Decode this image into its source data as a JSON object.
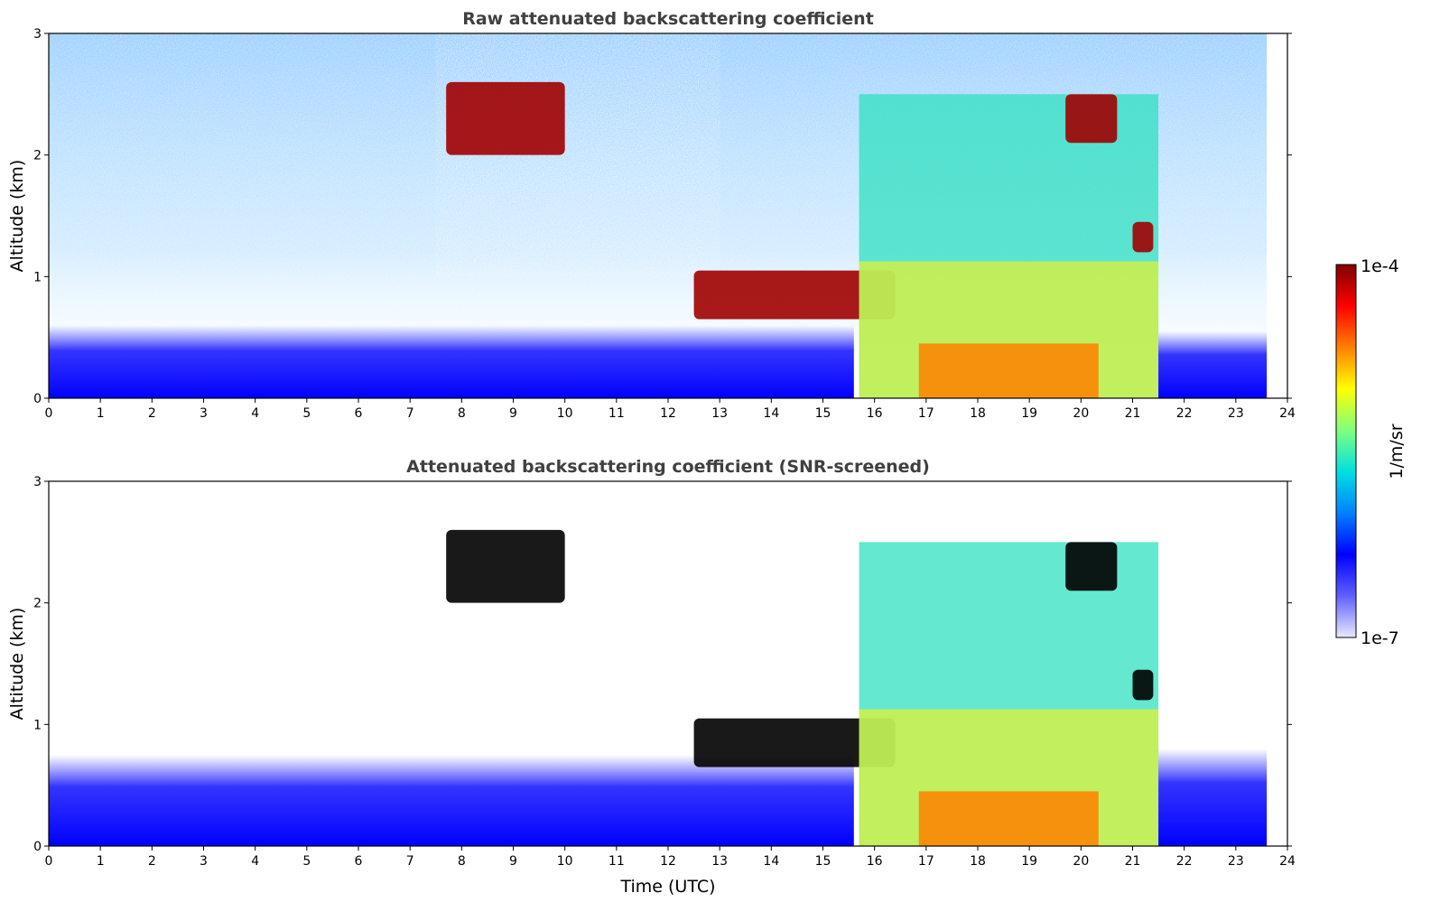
{
  "chart_data": [
    {
      "type": "heatmap",
      "title": "Raw attenuated backscattering coefficient",
      "xlabel": "",
      "ylabel": "Altitude (km)",
      "xlim": [
        0,
        24
      ],
      "ylim": [
        0,
        3
      ],
      "xticks": [
        "0",
        "1",
        "2",
        "3",
        "4",
        "5",
        "6",
        "7",
        "8",
        "9",
        "10",
        "11",
        "12",
        "13",
        "14",
        "15",
        "16",
        "17",
        "18",
        "19",
        "20",
        "21",
        "22",
        "23",
        "24"
      ],
      "yticks": [
        "0",
        "1",
        "2",
        "3"
      ],
      "data_end_time": 23.6,
      "features": [
        {
          "kind": "boundary_layer",
          "t0": 0,
          "t1": 15.6,
          "top_km": 0.6,
          "level": "low"
        },
        {
          "kind": "cloud_layer",
          "t0": 7.7,
          "t1": 10.0,
          "alt_km": [
            2.0,
            2.6
          ],
          "level": "very high"
        },
        {
          "kind": "cloud_layer",
          "t0": 12.5,
          "t1": 16.4,
          "alt_km": [
            0.65,
            1.05
          ],
          "level": "very high"
        },
        {
          "kind": "precipitation",
          "t0": 15.7,
          "t1": 21.5,
          "alt_km": [
            0,
            2.5
          ],
          "level": "high"
        },
        {
          "kind": "cloud_layer",
          "t0": 19.7,
          "t1": 20.7,
          "alt_km": [
            2.1,
            2.5
          ],
          "level": "very high"
        },
        {
          "kind": "cloud_layer",
          "t0": 21.0,
          "t1": 21.4,
          "alt_km": [
            1.2,
            1.45
          ],
          "level": "very high"
        },
        {
          "kind": "boundary_layer",
          "t0": 21.5,
          "t1": 23.6,
          "top_km": 0.55,
          "level": "low"
        }
      ]
    },
    {
      "type": "heatmap",
      "title": "Attenuated backscattering coefficient (SNR-screened)",
      "xlabel": "Time (UTC)",
      "ylabel": "Altitude (km)",
      "xlim": [
        0,
        24
      ],
      "ylim": [
        0,
        3
      ],
      "xticks": [
        "0",
        "1",
        "2",
        "3",
        "4",
        "5",
        "6",
        "7",
        "8",
        "9",
        "10",
        "11",
        "12",
        "13",
        "14",
        "15",
        "16",
        "17",
        "18",
        "19",
        "20",
        "21",
        "22",
        "23",
        "24"
      ],
      "yticks": [
        "0",
        "1",
        "2",
        "3"
      ],
      "data_end_time": 23.6,
      "features": [
        {
          "kind": "boundary_layer",
          "t0": 0,
          "t1": 15.6,
          "top_km": 0.75,
          "level": "low"
        },
        {
          "kind": "cloud_layer",
          "t0": 7.7,
          "t1": 10.0,
          "alt_km": [
            2.0,
            2.6
          ],
          "level": "saturated"
        },
        {
          "kind": "cloud_layer",
          "t0": 12.5,
          "t1": 16.4,
          "alt_km": [
            0.65,
            1.05
          ],
          "level": "saturated"
        },
        {
          "kind": "precipitation",
          "t0": 15.7,
          "t1": 21.5,
          "alt_km": [
            0,
            2.5
          ],
          "level": "high"
        },
        {
          "kind": "cloud_layer",
          "t0": 19.7,
          "t1": 20.7,
          "alt_km": [
            2.1,
            2.5
          ],
          "level": "saturated"
        },
        {
          "kind": "cloud_layer",
          "t0": 21.0,
          "t1": 21.4,
          "alt_km": [
            1.2,
            1.45
          ],
          "level": "saturated"
        },
        {
          "kind": "boundary_layer",
          "t0": 21.5,
          "t1": 23.6,
          "top_km": 0.8,
          "level": "low"
        }
      ]
    }
  ],
  "colorbar": {
    "label": "1/m/sr",
    "min_label": "1e-7",
    "max_label": "1e-4",
    "scale": "log",
    "colormap": [
      "#e8e8ff",
      "#6060ff",
      "#0000ff",
      "#0080ff",
      "#00e0e0",
      "#80ff80",
      "#ffff00",
      "#ff8000",
      "#ff0000",
      "#800000"
    ]
  }
}
